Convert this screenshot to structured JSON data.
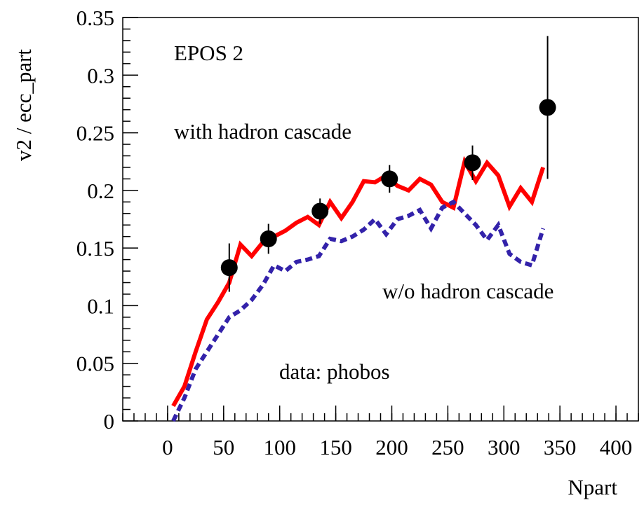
{
  "chart_data": {
    "type": "line",
    "x_label": "Npart",
    "y_label": "v2 / ecc_part",
    "annotations": [
      "EPOS 2",
      "with hadron cascade",
      "w/o hadron cascade",
      "data: phobos"
    ],
    "xlim": [
      -40,
      420
    ],
    "xticks": [
      0,
      50,
      100,
      150,
      200,
      250,
      300,
      350,
      400
    ],
    "ylim": [
      0,
      0.35
    ],
    "yticks": [
      0,
      0.05,
      0.1,
      0.15,
      0.2,
      0.25,
      0.3,
      0.35
    ],
    "series": [
      {
        "color": "#ff0000",
        "style": "solid",
        "x": [
          5,
          15,
          25,
          35,
          45,
          55,
          65,
          75,
          85,
          95,
          105,
          115,
          125,
          135,
          145,
          155,
          165,
          175,
          185,
          195,
          205,
          215,
          225,
          235,
          245,
          255,
          265,
          275,
          285,
          295,
          305,
          315,
          325,
          335
        ],
        "values": [
          0.013,
          0.03,
          0.06,
          0.088,
          0.103,
          0.12,
          0.153,
          0.143,
          0.155,
          0.16,
          0.165,
          0.172,
          0.177,
          0.17,
          0.19,
          0.176,
          0.19,
          0.208,
          0.207,
          0.213,
          0.204,
          0.2,
          0.21,
          0.205,
          0.19,
          0.185,
          0.225,
          0.208,
          0.224,
          0.213,
          0.186,
          0.202,
          0.19,
          0.22
        ]
      },
      {
        "color": "#3322aa",
        "style": "dashed",
        "x": [
          5,
          15,
          25,
          35,
          45,
          55,
          65,
          75,
          85,
          95,
          105,
          115,
          125,
          135,
          145,
          155,
          165,
          175,
          185,
          195,
          205,
          215,
          225,
          235,
          245,
          255,
          265,
          275,
          285,
          295,
          305,
          315,
          325,
          335
        ],
        "values": [
          0,
          0.02,
          0.045,
          0.06,
          0.075,
          0.09,
          0.096,
          0.105,
          0.118,
          0.135,
          0.13,
          0.138,
          0.14,
          0.143,
          0.158,
          0.156,
          0.16,
          0.166,
          0.175,
          0.162,
          0.175,
          0.178,
          0.183,
          0.167,
          0.185,
          0.19,
          0.18,
          0.17,
          0.157,
          0.17,
          0.145,
          0.138,
          0.135,
          0.167
        ]
      },
      {
        "color": "#000000",
        "style": "points",
        "x": [
          55,
          90,
          136,
          198,
          272,
          339
        ],
        "values": [
          0.133,
          0.158,
          0.182,
          0.21,
          0.224,
          0.272
        ],
        "errors": [
          0.021,
          0.013,
          0.011,
          0.012,
          0.015,
          0.062
        ]
      }
    ]
  }
}
